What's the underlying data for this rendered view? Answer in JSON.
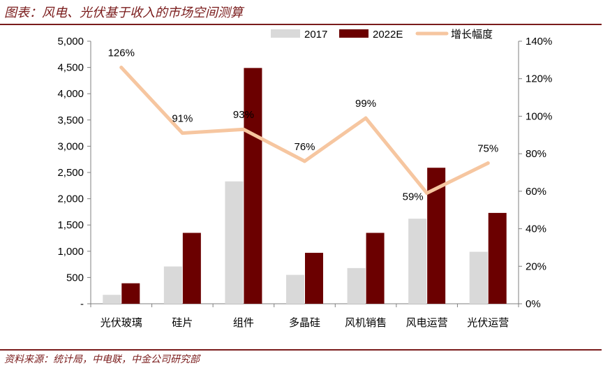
{
  "header": {
    "title": "图表：风电、光伏基于收入的市场空间测算"
  },
  "footer": {
    "source": "资料来源：统计局，中电联，中金公司研究部"
  },
  "chart_data": {
    "type": "bar",
    "categories": [
      "光伏玻璃",
      "硅片",
      "组件",
      "多晶硅",
      "风机销售",
      "风电运营",
      "光伏运营"
    ],
    "series": [
      {
        "name": "2017",
        "type": "bar",
        "axis": "left",
        "color": "#d9d9d9",
        "values": [
          170,
          710,
          2330,
          550,
          680,
          1620,
          990
        ]
      },
      {
        "name": "2022E",
        "type": "bar",
        "axis": "left",
        "color": "#6b0000",
        "values": [
          390,
          1350,
          4490,
          970,
          1350,
          2590,
          1730
        ]
      },
      {
        "name": "增长幅度",
        "type": "line",
        "axis": "right",
        "color": "#f6c6a0",
        "values": [
          126,
          91,
          93,
          76,
          99,
          59,
          75
        ]
      }
    ],
    "data_labels": [
      "126%",
      "91%",
      "93%",
      "76%",
      "99%",
      "59%",
      "75%"
    ],
    "y_left": {
      "ylim": [
        0,
        5000
      ],
      "ticks": [
        0,
        500,
        1000,
        1500,
        2000,
        2500,
        3000,
        3500,
        4000,
        4500,
        5000
      ],
      "tick_labels": [
        "-",
        "500",
        "1,000",
        "1,500",
        "2,000",
        "2,500",
        "3,000",
        "3,500",
        "4,000",
        "4,500",
        "5,000"
      ]
    },
    "y_right": {
      "ylim": [
        0,
        140
      ],
      "ticks": [
        0,
        20,
        40,
        60,
        80,
        100,
        120,
        140
      ],
      "tick_labels": [
        "0%",
        "20%",
        "40%",
        "60%",
        "80%",
        "100%",
        "120%",
        "140%"
      ]
    },
    "legend_position": "top-right",
    "grid": false
  }
}
